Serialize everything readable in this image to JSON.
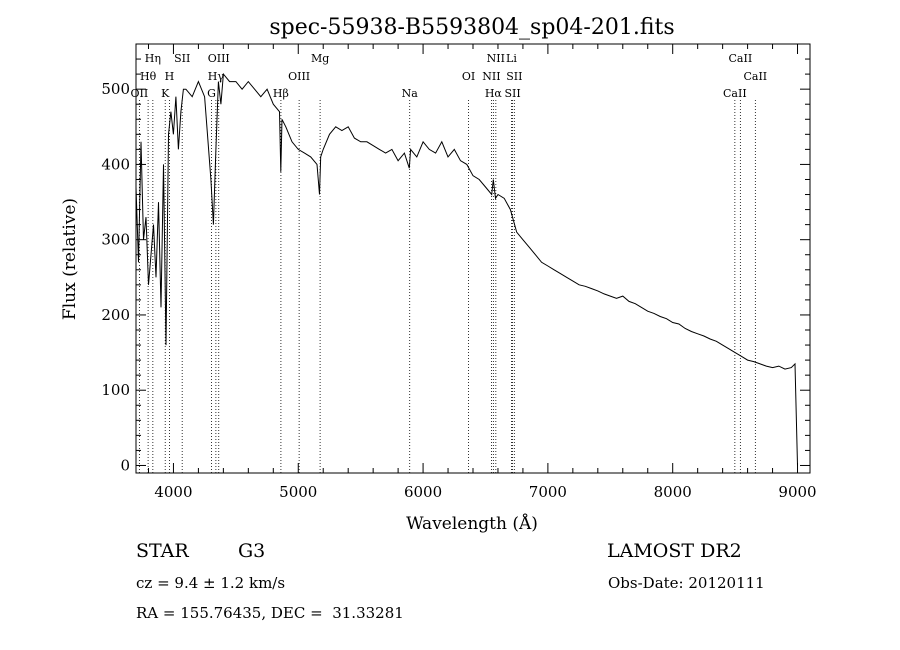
{
  "chart_data": {
    "type": "line",
    "title": "spec-55938-B5593804_sp04-201.fits",
    "xlabel": "Wavelength (Å)",
    "ylabel": "Flux (relative)",
    "xlim": [
      3700,
      9100
    ],
    "ylim": [
      -10,
      560
    ],
    "x_ticks": [
      4000,
      5000,
      6000,
      7000,
      8000,
      9000
    ],
    "y_ticks": [
      0,
      100,
      200,
      300,
      400,
      500
    ],
    "grid": false,
    "series": [
      {
        "x": [
          3700,
          3720,
          3740,
          3760,
          3780,
          3800,
          3820,
          3840,
          3860,
          3880,
          3900,
          3920,
          3940,
          3960,
          3980,
          4000,
          4020,
          4040,
          4060,
          4080,
          4100,
          4150,
          4200,
          4250,
          4300,
          4320,
          4340,
          4360,
          4380,
          4400,
          4450,
          4500,
          4550,
          4600,
          4650,
          4700,
          4750,
          4800,
          4850,
          4860,
          4870,
          4900,
          4950,
          5000,
          5050,
          5100,
          5150,
          5170,
          5180,
          5200,
          5250,
          5300,
          5350,
          5400,
          5450,
          5500,
          5550,
          5600,
          5650,
          5700,
          5750,
          5800,
          5850,
          5890,
          5900,
          5950,
          6000,
          6050,
          6100,
          6150,
          6200,
          6250,
          6300,
          6350,
          6400,
          6450,
          6500,
          6550,
          6563,
          6580,
          6600,
          6650,
          6700,
          6750,
          6800,
          6850,
          6900,
          6950,
          7000,
          7050,
          7100,
          7150,
          7200,
          7250,
          7300,
          7350,
          7400,
          7450,
          7500,
          7550,
          7600,
          7650,
          7700,
          7750,
          7800,
          7850,
          7900,
          7950,
          8000,
          8050,
          8100,
          8150,
          8200,
          8250,
          8300,
          8350,
          8400,
          8450,
          8500,
          8550,
          8600,
          8650,
          8700,
          8750,
          8800,
          8850,
          8900,
          8950,
          8980,
          9000
        ],
        "y": [
          370,
          270,
          430,
          300,
          330,
          240,
          280,
          320,
          250,
          350,
          210,
          400,
          160,
          440,
          470,
          440,
          490,
          420,
          470,
          500,
          500,
          490,
          510,
          490,
          380,
          320,
          420,
          510,
          480,
          520,
          510,
          510,
          500,
          510,
          500,
          490,
          500,
          480,
          470,
          390,
          460,
          450,
          430,
          420,
          415,
          410,
          400,
          360,
          410,
          420,
          440,
          450,
          445,
          450,
          435,
          430,
          430,
          425,
          420,
          415,
          420,
          405,
          415,
          395,
          420,
          410,
          430,
          420,
          415,
          430,
          410,
          420,
          405,
          400,
          385,
          380,
          370,
          360,
          380,
          355,
          360,
          355,
          340,
          310,
          300,
          290,
          280,
          270,
          265,
          260,
          255,
          250,
          245,
          240,
          238,
          235,
          232,
          228,
          225,
          222,
          225,
          218,
          215,
          210,
          205,
          202,
          198,
          195,
          190,
          188,
          182,
          178,
          175,
          172,
          168,
          165,
          160,
          155,
          150,
          145,
          140,
          138,
          135,
          132,
          130,
          132,
          128,
          130,
          135,
          0
        ]
      }
    ],
    "line_markers": [
      {
        "label": "Hη",
        "x": 3835,
        "row": 0
      },
      {
        "label": "Hθ",
        "x": 3797,
        "row": 1
      },
      {
        "label": "OII",
        "x": 3727,
        "row": 2
      },
      {
        "label": "SII",
        "x": 4070,
        "row": 0
      },
      {
        "label": "H",
        "x": 3968,
        "row": 1
      },
      {
        "label": "K",
        "x": 3934,
        "row": 2
      },
      {
        "label": "OIII",
        "x": 4363,
        "row": 0
      },
      {
        "label": "Hγ",
        "x": 4340,
        "row": 1
      },
      {
        "label": "G",
        "x": 4305,
        "row": 2
      },
      {
        "label": "Mg",
        "x": 5175,
        "row": 0
      },
      {
        "label": "OIII",
        "x": 5007,
        "row": 1
      },
      {
        "label": "Hβ",
        "x": 4861,
        "row": 2
      },
      {
        "label": "Na",
        "x": 5893,
        "row": 2
      },
      {
        "label": "NII",
        "x": 6583,
        "row": 0
      },
      {
        "label": "Li",
        "x": 6708,
        "row": 0
      },
      {
        "label": "OI",
        "x": 6364,
        "row": 1
      },
      {
        "label": "NII",
        "x": 6548,
        "row": 1
      },
      {
        "label": "SII",
        "x": 6731,
        "row": 1
      },
      {
        "label": "Hα",
        "x": 6563,
        "row": 2
      },
      {
        "label": "SII",
        "x": 6717,
        "row": 2
      },
      {
        "label": "CaII",
        "x": 8542,
        "row": 0
      },
      {
        "label": "CaII",
        "x": 8662,
        "row": 1
      },
      {
        "label": "CaII",
        "x": 8498,
        "row": 2
      }
    ]
  },
  "info": {
    "class": "STAR",
    "subclass": "G3",
    "survey": "LAMOST DR2",
    "cz": "cz = 9.4 ± 1.2 km/s",
    "obs_date": "Obs-Date: 20120111",
    "radec": "RA = 155.76435, DEC =  31.33281"
  }
}
